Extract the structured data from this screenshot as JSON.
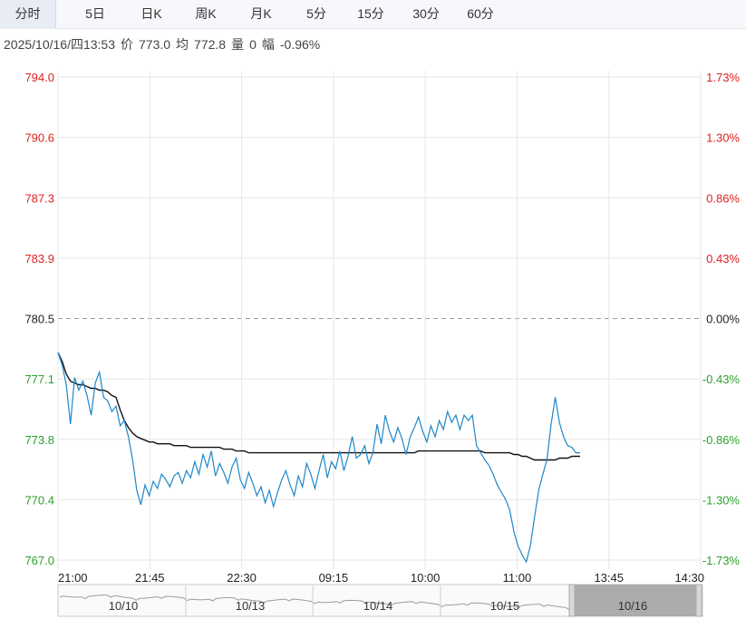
{
  "tabs": [
    {
      "label": "分时",
      "active": true
    },
    {
      "label": "5日",
      "active": false
    },
    {
      "label": "日K",
      "active": false
    },
    {
      "label": "周K",
      "active": false
    },
    {
      "label": "月K",
      "active": false
    },
    {
      "label": "5分",
      "active": false
    },
    {
      "label": "15分",
      "active": false
    },
    {
      "label": "30分",
      "active": false
    },
    {
      "label": "60分",
      "active": false
    }
  ],
  "info": {
    "datetime": "2025/10/16/四13:53",
    "price_label": "价",
    "price": "773.0",
    "avg_label": "均",
    "avg": "772.8",
    "vol_label": "量",
    "vol": "0",
    "chg_label": "幅",
    "chg": "-0.96%"
  },
  "colors": {
    "up": "#e02020",
    "down": "#2aa12a",
    "price_line": "#1f86c8",
    "avg_line": "#111111",
    "grid": "#e6e6e6"
  },
  "chart_data": {
    "type": "line",
    "title": "",
    "xlabel": "",
    "ylabel": "",
    "ylim": [
      767.0,
      794.0
    ],
    "ref_price": 780.5,
    "y_ticks_left": [
      "794.0",
      "790.6",
      "787.3",
      "783.9",
      "780.5",
      "777.1",
      "773.8",
      "770.4",
      "767.0"
    ],
    "y_ticks_right": [
      "1.73%",
      "1.30%",
      "0.86%",
      "0.43%",
      "0.00%",
      "-0.43%",
      "-0.86%",
      "-1.30%",
      "-1.73%"
    ],
    "x_ticks": [
      "21:00",
      "21:45",
      "22:30",
      "09:15",
      "10:00",
      "11:00",
      "13:45",
      "14:30"
    ],
    "grid": true,
    "series": [
      {
        "key": "price",
        "values": [
          778.6,
          777.9,
          776.8,
          774.6,
          777.2,
          776.5,
          777.0,
          776.2,
          775.1,
          776.9,
          777.5,
          776.1,
          775.9,
          775.3,
          775.6,
          774.5,
          774.8,
          773.9,
          772.6,
          770.9,
          770.1,
          771.2,
          770.6,
          771.4,
          771.0,
          771.8,
          771.5,
          771.1,
          771.7,
          771.9,
          771.3,
          772.0,
          771.6,
          772.5,
          771.8,
          772.9,
          772.2,
          773.1,
          771.7,
          772.4,
          771.9,
          771.3,
          772.2,
          772.7,
          771.5,
          771.0,
          771.9,
          771.3,
          770.6,
          771.1,
          770.2,
          770.9,
          770.0,
          770.8,
          771.5,
          772.0,
          771.2,
          770.6,
          771.7,
          771.1,
          772.4,
          771.8,
          771.0,
          772.0,
          772.9,
          771.6,
          772.5,
          772.1,
          773.1,
          772.0,
          772.8,
          773.9,
          772.7,
          772.9,
          773.4,
          772.4,
          773.0,
          774.6,
          773.5,
          775.1,
          774.2,
          773.6,
          774.4,
          773.8,
          772.9,
          773.9,
          774.4,
          775.0,
          774.2,
          773.6,
          774.5,
          773.9,
          774.8,
          774.3,
          775.3,
          774.7,
          775.1,
          774.3,
          775.1,
          774.8,
          775.1,
          773.4,
          773.0,
          772.6,
          772.3,
          771.8,
          771.2,
          770.8,
          770.4,
          769.8,
          768.6,
          767.8,
          767.3,
          766.9,
          767.8,
          769.4,
          770.9,
          771.8,
          772.6,
          774.6,
          776.1,
          774.7,
          773.9,
          773.4,
          773.3,
          773.0,
          773.0
        ],
        "avg": [
          778.6,
          778.1,
          777.4,
          777.0,
          776.9,
          776.8,
          776.8,
          776.7,
          776.6,
          776.6,
          776.5,
          776.5,
          776.4,
          776.2,
          776.1,
          775.4,
          774.8,
          774.4,
          774.1,
          773.9,
          773.8,
          773.7,
          773.6,
          773.6,
          773.5,
          773.5,
          773.5,
          773.5,
          773.4,
          773.4,
          773.4,
          773.4,
          773.3,
          773.3,
          773.3,
          773.3,
          773.3,
          773.3,
          773.3,
          773.3,
          773.2,
          773.2,
          773.2,
          773.1,
          773.1,
          773.1,
          773.0,
          773.0,
          773.0,
          773.0,
          773.0,
          773.0,
          773.0,
          773.0,
          773.0,
          773.0,
          773.0,
          773.0,
          773.0,
          773.0,
          773.0,
          773.0,
          773.0,
          773.0,
          773.0,
          773.0,
          773.0,
          773.0,
          773.0,
          773.0,
          773.0,
          773.0,
          773.0,
          773.0,
          773.0,
          773.0,
          773.0,
          773.0,
          773.0,
          773.0,
          773.0,
          773.0,
          773.0,
          773.0,
          773.0,
          773.0,
          773.0,
          773.1,
          773.1,
          773.1,
          773.1,
          773.1,
          773.1,
          773.1,
          773.1,
          773.1,
          773.1,
          773.1,
          773.1,
          773.1,
          773.1,
          773.1,
          773.1,
          773.0,
          773.0,
          773.0,
          773.0,
          773.0,
          773.0,
          773.0,
          772.9,
          772.9,
          772.8,
          772.8,
          772.7,
          772.6,
          772.6,
          772.6,
          772.6,
          772.6,
          772.6,
          772.7,
          772.7,
          772.7,
          772.8,
          772.8,
          772.8
        ]
      }
    ]
  },
  "navigator": {
    "labels": [
      "10/10",
      "10/13",
      "10/14",
      "10/15",
      "10/16"
    ]
  }
}
